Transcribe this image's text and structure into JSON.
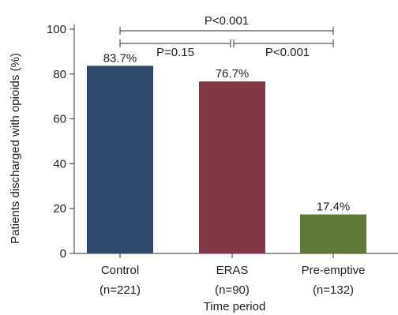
{
  "chart_data": {
    "type": "bar",
    "title": "",
    "xlabel": "Time period",
    "ylabel": "Patients discharged with opioids (%)",
    "ylim": [
      0,
      100
    ],
    "yticks": [
      0,
      20,
      40,
      60,
      80,
      100
    ],
    "categories": [
      {
        "name": "Control",
        "n_label": "(n=221)"
      },
      {
        "name": "ERAS",
        "n_label": "(n=90)"
      },
      {
        "name": "Pre-emptive",
        "n_label": "(n=132)"
      }
    ],
    "values": [
      83.7,
      76.7,
      17.4
    ],
    "data_labels": [
      "83.7%",
      "76.7%",
      "17.4%"
    ],
    "colors": [
      "#2e4a6f",
      "#843a45",
      "#5d7a3a"
    ],
    "grid": false,
    "legend": "none",
    "comparisons": [
      {
        "from": 0,
        "to": 2,
        "label": "P<0.001"
      },
      {
        "from": 0,
        "to": 1,
        "label": "P=0.15"
      },
      {
        "from": 1,
        "to": 2,
        "label": "P<0.001"
      }
    ]
  }
}
